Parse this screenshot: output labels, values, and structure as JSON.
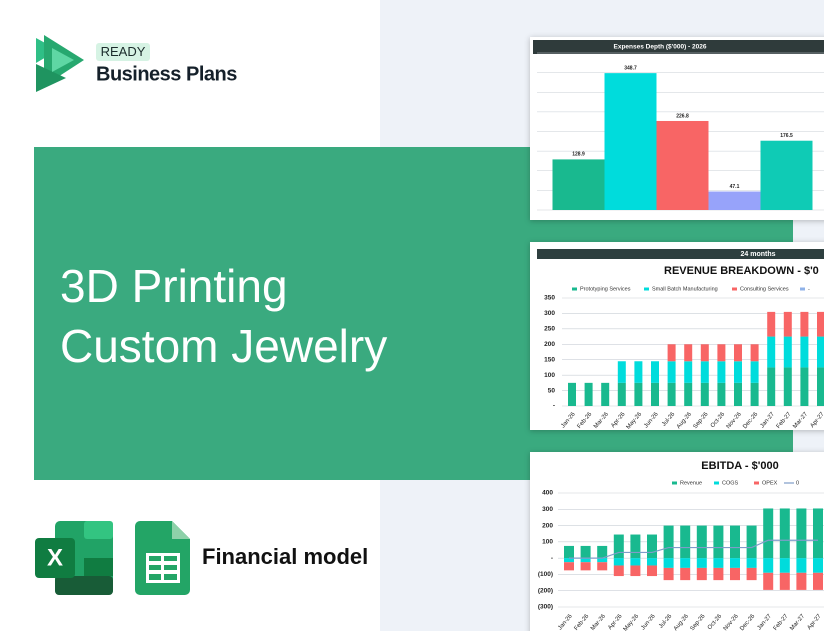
{
  "logo": {
    "badge": "READY",
    "brand": "Business Plans"
  },
  "banner": {
    "title_lines": [
      "3D Printing",
      "Custom Jewelry"
    ]
  },
  "footer": {
    "label": "Financial model"
  },
  "chart_data": [
    {
      "type": "bar",
      "title": "Expenses Depth ($'000) - 2026",
      "values": [
        128.9,
        348.7,
        226.8,
        47.1,
        176.5
      ],
      "colors": [
        "#19b98f",
        "#00dcdc",
        "#f86565",
        "#97a3fa",
        "#0fcbb5"
      ],
      "ylim": [
        0,
        400
      ],
      "yticks": [
        0,
        50,
        100,
        150,
        200,
        250,
        300,
        350,
        400
      ],
      "grid": true
    },
    {
      "type": "bar",
      "stacked": true,
      "subtitle": "24 months",
      "title": "REVENUE BREAKDOWN - $'0",
      "categories": [
        "Jan-26",
        "Feb-26",
        "Mar-26",
        "Apr-26",
        "May-26",
        "Jun-26",
        "Jul-26",
        "Aug-26",
        "Sep-26",
        "Oct-26",
        "Nov-26",
        "Dec-26",
        "Jan-27",
        "Feb-27",
        "Mar-27",
        "Apr-27"
      ],
      "series": [
        {
          "name": "Prototyping Services",
          "color": "#19b98f",
          "values": [
            75,
            75,
            75,
            75,
            75,
            75,
            75,
            75,
            75,
            75,
            75,
            75,
            125,
            125,
            125,
            125
          ]
        },
        {
          "name": "Small Batch Manufacturing",
          "color": "#00dcdc",
          "values": [
            null,
            null,
            null,
            70,
            70,
            70,
            70,
            70,
            70,
            70,
            70,
            70,
            100,
            100,
            100,
            100
          ]
        },
        {
          "name": "Consulting Services",
          "color": "#f86565",
          "values": [
            null,
            null,
            null,
            null,
            null,
            null,
            55,
            55,
            55,
            55,
            55,
            55,
            80,
            80,
            80,
            80
          ]
        },
        {
          "name": "-",
          "color": "#8fb2e8",
          "values": [
            null,
            null,
            null,
            null,
            null,
            null,
            null,
            null,
            null,
            null,
            null,
            null,
            null,
            null,
            null,
            null
          ]
        }
      ],
      "ylim": [
        0,
        350
      ],
      "yticks": [
        {
          "value": 0,
          "label": "-"
        },
        50,
        100,
        150,
        200,
        250,
        300,
        350
      ],
      "grid": true,
      "legend": "top"
    },
    {
      "type": "bar",
      "stacked": true,
      "title": "EBITDA - $'000",
      "categories": [
        "Jan-26",
        "Feb-26",
        "Mar-26",
        "Apr-26",
        "May-26",
        "Jun-26",
        "Jul-26",
        "Aug-26",
        "Sep-26",
        "Oct-26",
        "Nov-26",
        "Dec-26",
        "Jan-27",
        "Feb-27",
        "Mar-27",
        "Apr-27"
      ],
      "series": [
        {
          "name": "Revenue",
          "color": "#19b98f",
          "values": [
            75,
            75,
            75,
            145,
            145,
            145,
            200,
            200,
            200,
            200,
            200,
            200,
            305,
            305,
            305,
            305
          ]
        },
        {
          "name": "COGS",
          "color": "#00dcdc",
          "values": [
            -25,
            -25,
            -25,
            -45,
            -45,
            -45,
            -60,
            -60,
            -60,
            -60,
            -60,
            -60,
            -90,
            -90,
            -90,
            -90
          ]
        },
        {
          "name": "OPEX",
          "color": "#f86565",
          "values": [
            -50,
            -50,
            -50,
            -65,
            -65,
            -65,
            -75,
            -75,
            -75,
            -75,
            -75,
            -75,
            -105,
            -105,
            -105,
            -105
          ]
        },
        {
          "name": "0",
          "type": "line",
          "color": "#7f9cc9",
          "values": [
            0,
            0,
            0,
            35,
            35,
            35,
            65,
            65,
            65,
            65,
            65,
            65,
            110,
            110,
            110,
            110
          ]
        }
      ],
      "ylim": [
        -300,
        400
      ],
      "yticks": [
        {
          "value": -300,
          "label": "(300)"
        },
        {
          "value": -200,
          "label": "(200)"
        },
        {
          "value": -100,
          "label": "(100)"
        },
        {
          "value": 0,
          "label": "-"
        },
        100,
        200,
        300,
        400
      ],
      "grid": true,
      "legend": "top"
    }
  ]
}
